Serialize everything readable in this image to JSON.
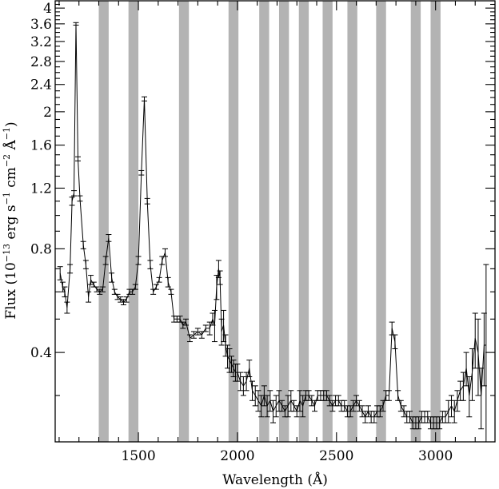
{
  "chart_data": {
    "type": "line",
    "ylabel_parts": {
      "flux": "Flux (10",
      "exp1": "−13",
      "erg": " erg s",
      "exp2": "−1",
      "cm": " cm",
      "exp3": "−2",
      "ang": " Å",
      "exp4": "−1",
      "close": ")"
    },
    "xlabel": "Wavelength (Å)",
    "xlim": [
      1080,
      3300
    ],
    "ylim": [
      0.22,
      4.2
    ],
    "yscale": "log",
    "x_ticks_labeled": [
      1500,
      2000,
      2500,
      3000
    ],
    "y_ticks_labeled": [
      0.4,
      0.8,
      1.2,
      1.6,
      2,
      2.4,
      2.8,
      3.2,
      3.6,
      4
    ],
    "y_tick_labels": [
      "0.4",
      "0.8",
      "1.2",
      "1.6",
      "2",
      "2.4",
      "2.8",
      "3.2",
      "3.6",
      "4"
    ],
    "x_tick_labels": [
      "1500",
      "2000",
      "2500",
      "3000"
    ],
    "shaded_bands": [
      [
        1300,
        1350
      ],
      [
        1450,
        1500
      ],
      [
        1705,
        1755
      ],
      [
        1955,
        2005
      ],
      [
        2110,
        2160
      ],
      [
        2210,
        2260
      ],
      [
        2310,
        2360
      ],
      [
        2430,
        2480
      ],
      [
        2555,
        2605
      ],
      [
        2700,
        2750
      ],
      [
        2875,
        2925
      ],
      [
        2975,
        3025
      ]
    ],
    "series": [
      {
        "x": [
          1105,
          1118,
          1128,
          1140,
          1155,
          1165,
          1175,
          1185,
          1195,
          1205,
          1222,
          1235,
          1248,
          1260,
          1275,
          1290,
          1305,
          1320,
          1335,
          1350,
          1365,
          1380,
          1395,
          1410,
          1425,
          1440,
          1455,
          1470,
          1485,
          1500,
          1515,
          1530,
          1545,
          1560,
          1575,
          1590,
          1605,
          1620,
          1635,
          1650,
          1665,
          1680,
          1695,
          1710,
          1725,
          1740,
          1760,
          1780,
          1800,
          1820,
          1840,
          1860,
          1875,
          1885,
          1895,
          1905,
          1912,
          1920,
          1930,
          1940,
          1950,
          1960,
          1970,
          1980,
          1990,
          2000,
          2015,
          2030,
          2045,
          2060,
          2075,
          2090,
          2105,
          2120,
          2135,
          2150,
          2165,
          2180,
          2195,
          2210,
          2225,
          2240,
          2255,
          2270,
          2285,
          2300,
          2315,
          2330,
          2345,
          2360,
          2375,
          2390,
          2405,
          2420,
          2435,
          2450,
          2465,
          2480,
          2495,
          2510,
          2525,
          2540,
          2555,
          2570,
          2585,
          2600,
          2615,
          2630,
          2645,
          2660,
          2675,
          2690,
          2705,
          2720,
          2735,
          2750,
          2765,
          2780,
          2795,
          2810,
          2825,
          2840,
          2855,
          2870,
          2885,
          2900,
          2915,
          2930,
          2945,
          2960,
          2975,
          2990,
          3005,
          3020,
          3035,
          3050,
          3065,
          3080,
          3095,
          3110,
          3125,
          3140,
          3155,
          3170,
          3185,
          3200,
          3215,
          3230,
          3245,
          3255
        ],
        "y": [
          0.68,
          0.62,
          0.6,
          0.54,
          0.7,
          1.1,
          1.16,
          3.6,
          1.46,
          1.12,
          0.82,
          0.72,
          0.58,
          0.65,
          0.63,
          0.61,
          0.6,
          0.61,
          0.74,
          0.86,
          0.66,
          0.6,
          0.58,
          0.57,
          0.56,
          0.57,
          0.6,
          0.6,
          0.62,
          0.74,
          1.33,
          2.18,
          1.1,
          0.72,
          0.6,
          0.62,
          0.65,
          0.74,
          0.78,
          0.64,
          0.6,
          0.5,
          0.5,
          0.5,
          0.48,
          0.49,
          0.44,
          0.45,
          0.46,
          0.45,
          0.47,
          0.47,
          0.5,
          0.48,
          0.62,
          0.7,
          0.66,
          0.46,
          0.48,
          0.42,
          0.39,
          0.38,
          0.37,
          0.36,
          0.35,
          0.35,
          0.33,
          0.32,
          0.33,
          0.36,
          0.31,
          0.3,
          0.29,
          0.28,
          0.3,
          0.28,
          0.29,
          0.27,
          0.28,
          0.29,
          0.28,
          0.27,
          0.28,
          0.29,
          0.28,
          0.27,
          0.29,
          0.28,
          0.3,
          0.3,
          0.29,
          0.28,
          0.3,
          0.3,
          0.3,
          0.3,
          0.29,
          0.28,
          0.29,
          0.29,
          0.28,
          0.28,
          0.27,
          0.27,
          0.28,
          0.29,
          0.28,
          0.27,
          0.26,
          0.27,
          0.26,
          0.26,
          0.27,
          0.27,
          0.28,
          0.3,
          0.3,
          0.47,
          0.43,
          0.3,
          0.28,
          0.27,
          0.26,
          0.26,
          0.25,
          0.25,
          0.25,
          0.26,
          0.26,
          0.26,
          0.25,
          0.25,
          0.25,
          0.25,
          0.26,
          0.26,
          0.27,
          0.28,
          0.27,
          0.29,
          0.31,
          0.32,
          0.36,
          0.3,
          0.35,
          0.44,
          0.4,
          0.3,
          0.42,
          0.42
        ],
        "err": [
          0.03,
          0.02,
          0.02,
          0.02,
          0.02,
          0.03,
          0.02,
          0.03,
          0.02,
          0.02,
          0.02,
          0.02,
          0.02,
          0.02,
          0.01,
          0.01,
          0.01,
          0.01,
          0.02,
          0.02,
          0.02,
          0.01,
          0.01,
          0.01,
          0.01,
          0.01,
          0.01,
          0.01,
          0.01,
          0.02,
          0.02,
          0.03,
          0.02,
          0.02,
          0.01,
          0.01,
          0.01,
          0.02,
          0.02,
          0.02,
          0.01,
          0.01,
          0.01,
          0.01,
          0.01,
          0.01,
          0.01,
          0.01,
          0.01,
          0.01,
          0.01,
          0.02,
          0.02,
          0.05,
          0.05,
          0.04,
          0.03,
          0.04,
          0.05,
          0.03,
          0.03,
          0.03,
          0.02,
          0.02,
          0.02,
          0.02,
          0.02,
          0.02,
          0.02,
          0.02,
          0.02,
          0.02,
          0.02,
          0.02,
          0.02,
          0.02,
          0.02,
          0.02,
          0.02,
          0.02,
          0.01,
          0.01,
          0.02,
          0.02,
          0.01,
          0.01,
          0.02,
          0.02,
          0.01,
          0.01,
          0.01,
          0.01,
          0.01,
          0.01,
          0.01,
          0.01,
          0.01,
          0.01,
          0.01,
          0.01,
          0.01,
          0.01,
          0.01,
          0.01,
          0.01,
          0.01,
          0.01,
          0.01,
          0.01,
          0.01,
          0.01,
          0.01,
          0.01,
          0.01,
          0.01,
          0.01,
          0.01,
          0.02,
          0.02,
          0.01,
          0.01,
          0.01,
          0.01,
          0.01,
          0.01,
          0.01,
          0.01,
          0.01,
          0.01,
          0.01,
          0.01,
          0.01,
          0.01,
          0.01,
          0.01,
          0.01,
          0.02,
          0.02,
          0.02,
          0.02,
          0.02,
          0.03,
          0.04,
          0.04,
          0.06,
          0.08,
          0.1,
          0.06,
          0.1,
          0.3
        ]
      }
    ]
  }
}
